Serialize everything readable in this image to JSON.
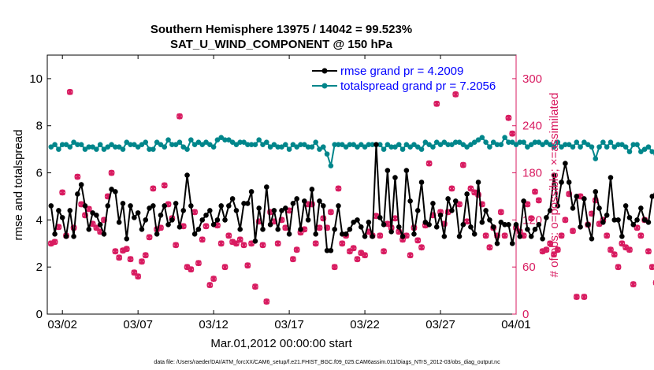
{
  "colors": {
    "rmse": "#000000",
    "spread": "#00868b",
    "obs": "#d81b60",
    "right_axis": "#d81b60",
    "legend_text": "#0000ff"
  },
  "chart_data": {
    "type": "line",
    "title_line1": "Southern Hemisphere 13975 / 14042 = 99.523%",
    "title_line2": "SAT_U_WIND_COMPONENT @ 150 hPa",
    "xlabel": "Mar.01,2012 00:00:00 start",
    "ylabel_left": "rmse and totalspread",
    "ylabel_right": "# of obs: o=possible; ×=assimilated",
    "x_range_days": [
      0.5,
      31.5
    ],
    "y_left_range": [
      0,
      11
    ],
    "y_right_range": [
      0,
      330
    ],
    "x_ticks": [
      {
        "day": 1.5,
        "label": "03/02"
      },
      {
        "day": 6.5,
        "label": "03/07"
      },
      {
        "day": 11.5,
        "label": "03/12"
      },
      {
        "day": 16.5,
        "label": "03/17"
      },
      {
        "day": 21.5,
        "label": "03/22"
      },
      {
        "day": 26.5,
        "label": "03/27"
      },
      {
        "day": 31.5,
        "label": "04/01"
      }
    ],
    "y_left_ticks": [
      0,
      2,
      4,
      6,
      8,
      10
    ],
    "y_right_ticks": [
      0,
      60,
      120,
      180,
      240,
      300
    ],
    "legend": [
      {
        "name": "rmse grand pr = 4.2009"
      },
      {
        "name": "totalspread grand pr = 7.2056"
      }
    ],
    "series": [
      {
        "name": "rmse",
        "axis": "left",
        "start_day": 0.75,
        "step_days": 0.25,
        "values": [
          4.6,
          3.4,
          4.4,
          4.1,
          3.3,
          4.4,
          3.3,
          5.1,
          5.5,
          4.6,
          3.6,
          4.3,
          4.2,
          3.8,
          3.4,
          4.6,
          5.3,
          5.2,
          3.9,
          4.7,
          3.2,
          4.6,
          4.1,
          4.3,
          3.6,
          4.0,
          4.5,
          4.6,
          3.4,
          4.2,
          4.6,
          3.8,
          4.0,
          4.7,
          3.7,
          4.4,
          5.9,
          4.6,
          3.4,
          3.6,
          4.0,
          4.2,
          4.4,
          3.8,
          4.0,
          4.6,
          4.0,
          4.6,
          4.9,
          4.4,
          3.6,
          4.7,
          4.7,
          5.2,
          3.1,
          4.5,
          3.6,
          5.4,
          3.8,
          4.4,
          3.6,
          4.4,
          4.5,
          3.4,
          4.7,
          4.9,
          3.6,
          4.8,
          4.0,
          5.3,
          3.4,
          4.8,
          4.6,
          2.7,
          2.7,
          3.6,
          4.6,
          3.4,
          3.4,
          3.6,
          3.9,
          4.0,
          3.7,
          3.3,
          3.9,
          3.3,
          7.2,
          4.1,
          3.8,
          6.1,
          3.5,
          5.8,
          3.7,
          3.3,
          6.1,
          4.8,
          3.4,
          4.4,
          5.6,
          3.9,
          3.8,
          4.7,
          3.7,
          4.2,
          3.3,
          4.9,
          4.4,
          4.8,
          3.3,
          3.8,
          5.1,
          3.7,
          3.4,
          5.6,
          3.9,
          4.4,
          4.0,
          3.7,
          3.0,
          3.9,
          3.8,
          3.8,
          3.0,
          3.8,
          3.3,
          4.8,
          3.6,
          3.3,
          3.6,
          3.8,
          3.2,
          4.1,
          4.4,
          5.9,
          4.6,
          5.6,
          6.4,
          5.6,
          4.5,
          5.0,
          3.7,
          4.9,
          3.8,
          3.2,
          5.2,
          4.5,
          3.9,
          4.2,
          5.8,
          4.0,
          4.0,
          3.3,
          4.6,
          4.1,
          3.8,
          4.0,
          4.5,
          4.0,
          3.9,
          5.0,
          5.1
        ]
      },
      {
        "name": "totalspread",
        "axis": "left",
        "start_day": 0.75,
        "step_days": 0.25,
        "values": [
          7.1,
          7.2,
          7.0,
          7.2,
          7.2,
          7.1,
          7.3,
          7.2,
          7.2,
          7.0,
          7.1,
          7.1,
          7.0,
          7.2,
          7.0,
          7.1,
          7.2,
          7.1,
          7.1,
          7.0,
          7.3,
          7.2,
          7.2,
          7.1,
          7.2,
          7.3,
          7.0,
          7.0,
          7.3,
          7.2,
          7.1,
          7.4,
          7.2,
          7.2,
          7.3,
          7.1,
          7.0,
          7.4,
          7.2,
          7.3,
          7.2,
          7.3,
          7.2,
          7.1,
          7.4,
          7.5,
          7.4,
          7.4,
          7.3,
          7.2,
          7.3,
          7.3,
          7.2,
          7.2,
          7.2,
          7.4,
          7.2,
          7.3,
          7.1,
          7.2,
          7.1,
          7.1,
          7.2,
          7.0,
          7.2,
          7.1,
          7.2,
          7.2,
          7.1,
          7.1,
          7.3,
          7.0,
          7.1,
          6.8,
          6.3,
          7.2,
          7.2,
          7.2,
          7.1,
          7.2,
          7.2,
          7.1,
          7.2,
          7.1,
          7.2,
          7.2,
          7.2,
          7.2,
          7.0,
          7.2,
          7.1,
          7.1,
          7.2,
          7.0,
          7.2,
          7.1,
          7.2,
          7.1,
          7.0,
          7.3,
          7.2,
          7.1,
          7.3,
          7.2,
          7.3,
          7.2,
          7.2,
          7.3,
          7.3,
          7.2,
          7.1,
          7.2,
          7.3,
          7.4,
          7.5,
          7.3,
          7.1,
          7.3,
          7.2,
          7.2,
          7.5,
          7.3,
          7.3,
          7.2,
          7.3,
          7.3,
          7.1,
          7.2,
          7.3,
          7.3,
          7.2,
          7.3,
          7.2,
          7.1,
          7.3,
          7.1,
          7.2,
          7.2,
          7.1,
          7.3,
          7.1,
          7.3,
          7.2,
          7.1,
          6.6,
          7.1,
          7.3,
          7.1,
          7.3,
          7.1,
          7.2,
          7.2,
          7.1,
          6.9,
          7.2,
          7.2,
          6.9,
          7.0,
          7.1,
          6.9,
          6.8
        ]
      },
      {
        "name": "obs_assimilated",
        "axis": "right",
        "start_day": 0.75,
        "step_days": 0.25,
        "values": [
          90,
          92,
          111,
          155,
          100,
          283,
          110,
          175,
          140,
          126,
          134,
          115,
          110,
          105,
          120,
          150,
          180,
          80,
          72,
          81,
          83,
          70,
          53,
          48,
          67,
          75,
          98,
          160,
          108,
          110,
          164,
          140,
          122,
          88,
          252,
          112,
          60,
          57,
          130,
          65,
          95,
          112,
          37,
          45,
          113,
          90,
          60,
          100,
          92,
          90,
          95,
          88,
          62,
          90,
          35,
          118,
          88,
          16,
          130,
          118,
          90,
          120,
          110,
          132,
          70,
          82,
          104,
          108,
          140,
          140,
          90,
          110,
          122,
          110,
          130,
          60,
          160,
          90,
          100,
          80,
          84,
          70,
          78,
          75,
          105,
          100,
          125,
          100,
          80,
          115,
          110,
          122,
          105,
          95,
          100,
          75,
          110,
          94,
          85,
          113,
          192,
          126,
          268,
          130,
          115,
          130,
          160,
          280,
          140,
          190,
          118,
          160,
          155,
          152,
          140,
          100,
          85,
          110,
          100,
          130,
          100,
          250,
          230,
          110,
          105,
          100,
          140,
          122,
          156,
          145,
          80,
          82,
          90,
          76,
          82,
          100,
          120,
          153,
          106,
          22,
          150,
          22,
          114,
          128,
          145,
          115,
          120,
          100,
          82,
          76,
          60,
          90,
          85,
          82,
          38,
          110,
          100,
          120,
          80,
          60,
          40
        ]
      },
      {
        "name": "obs_possible",
        "axis": "right",
        "start_day": 0.75,
        "step_days": 0.25,
        "values": [
          90,
          92,
          111,
          155,
          100,
          283,
          110,
          175,
          140,
          126,
          134,
          115,
          110,
          105,
          120,
          150,
          180,
          80,
          72,
          81,
          83,
          70,
          53,
          48,
          67,
          75,
          98,
          160,
          108,
          110,
          164,
          140,
          122,
          88,
          252,
          112,
          60,
          57,
          130,
          65,
          95,
          112,
          37,
          45,
          113,
          90,
          60,
          100,
          92,
          90,
          95,
          88,
          62,
          90,
          35,
          118,
          88,
          16,
          130,
          118,
          90,
          120,
          110,
          132,
          70,
          82,
          104,
          108,
          140,
          140,
          90,
          110,
          122,
          110,
          130,
          60,
          160,
          90,
          100,
          80,
          84,
          70,
          78,
          75,
          105,
          100,
          125,
          100,
          80,
          115,
          110,
          122,
          105,
          95,
          100,
          75,
          110,
          94,
          85,
          113,
          192,
          126,
          268,
          130,
          115,
          130,
          160,
          280,
          140,
          190,
          118,
          160,
          155,
          152,
          140,
          100,
          85,
          110,
          100,
          130,
          100,
          250,
          230,
          110,
          105,
          100,
          140,
          122,
          156,
          145,
          80,
          82,
          90,
          76,
          82,
          100,
          120,
          153,
          106,
          22,
          150,
          22,
          114,
          128,
          145,
          115,
          120,
          100,
          82,
          76,
          60,
          90,
          85,
          82,
          38,
          110,
          100,
          120,
          80,
          60,
          40
        ]
      }
    ]
  },
  "footer_text": "data file: /Users/raeder/DAI/ATM_forcXX/CAM6_setup/f.e21.FHIST_BGC.f09_025.CAM6assim.011/Diags_NTrS_2012-03/obs_diag_output.nc"
}
